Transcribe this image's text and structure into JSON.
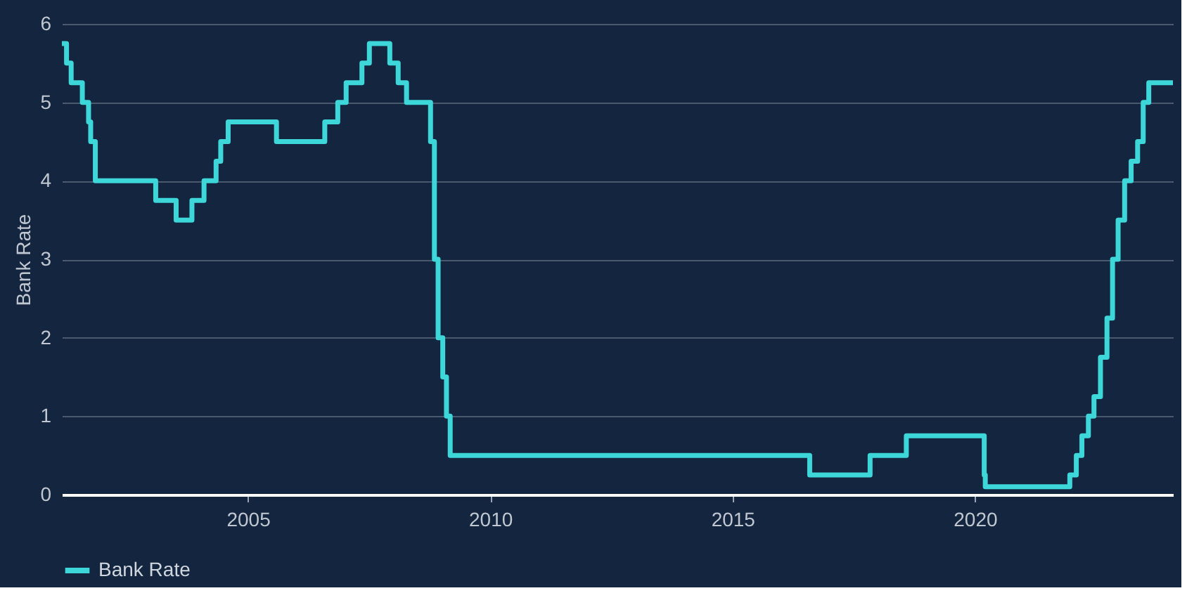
{
  "chart_data": {
    "type": "step",
    "ylabel": "Bank Rate",
    "x": [
      "2001-03-01",
      "2001-04-05",
      "2001-05-10",
      "2001-08-02",
      "2001-09-18",
      "2001-10-04",
      "2001-11-08",
      "2003-02-06",
      "2003-07-10",
      "2003-11-06",
      "2004-02-05",
      "2004-05-06",
      "2004-06-10",
      "2004-08-05",
      "2005-08-04",
      "2006-08-03",
      "2006-11-09",
      "2007-01-11",
      "2007-05-10",
      "2007-07-05",
      "2007-12-06",
      "2008-02-07",
      "2008-04-10",
      "2008-10-08",
      "2008-11-06",
      "2008-12-04",
      "2009-01-08",
      "2009-02-05",
      "2009-03-05",
      "2016-08-04",
      "2017-11-02",
      "2018-08-02",
      "2020-03-11",
      "2020-03-19",
      "2021-12-16",
      "2022-02-03",
      "2022-03-17",
      "2022-05-05",
      "2022-06-16",
      "2022-08-04",
      "2022-09-22",
      "2022-11-03",
      "2022-12-15",
      "2023-02-02",
      "2023-03-23",
      "2023-05-11",
      "2023-06-22",
      "2023-08-03",
      "2024-02-01"
    ],
    "series": [
      {
        "name": "Bank Rate",
        "color": "#3dd6d9",
        "values": [
          5.75,
          5.5,
          5.25,
          5,
          4.75,
          4.5,
          4,
          3.75,
          3.5,
          3.75,
          4,
          4.25,
          4.5,
          4.75,
          4.5,
          4.75,
          5,
          5.25,
          5.5,
          5.75,
          5.5,
          5.25,
          5,
          4.5,
          3,
          2,
          1.5,
          1,
          0.5,
          0.25,
          0.5,
          0.75,
          0.25,
          0.1,
          0.25,
          0.5,
          0.75,
          1,
          1.25,
          1.75,
          2.25,
          3,
          3.5,
          4,
          4.25,
          4.5,
          5,
          5.25,
          5.25
        ]
      }
    ],
    "xlim": [
      "2001-03-01",
      "2024-02-01"
    ],
    "xticks": [
      "2005",
      "2010",
      "2015",
      "2020"
    ],
    "ylim": [
      0,
      6
    ],
    "yticks": [
      0,
      1,
      2,
      3,
      4,
      5,
      6
    ],
    "grid": "y",
    "legend": "bottom",
    "line_style": "solid",
    "marker": "none"
  }
}
